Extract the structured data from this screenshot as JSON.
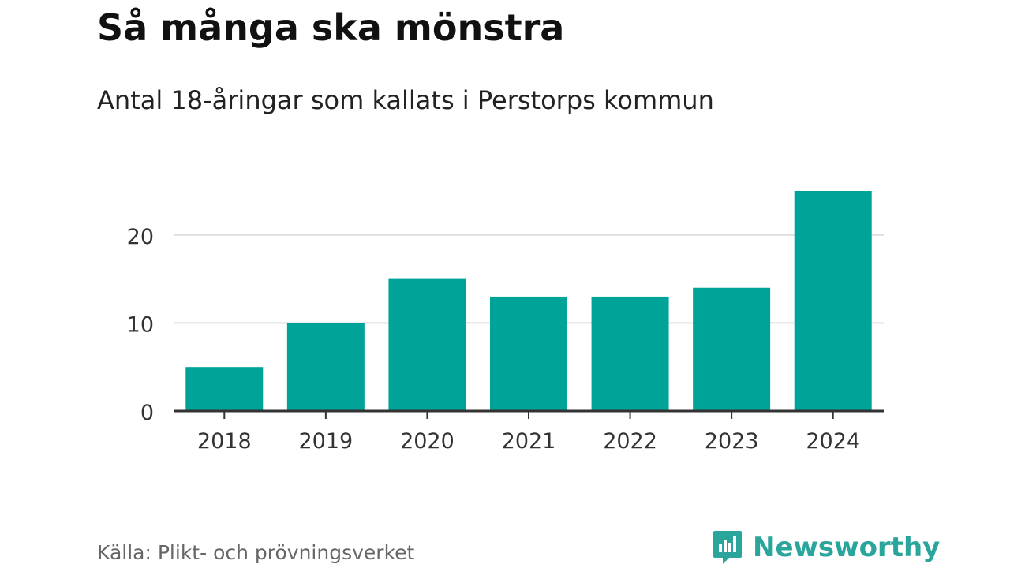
{
  "header": {
    "title": "Så många ska mönstra",
    "subtitle": "Antal 18-åringar som kallats i Perstorps kommun"
  },
  "footer": {
    "source": "Källa: Plikt- och prövningsverket",
    "brand": "Newsworthy",
    "brand_color": "#2aa59b"
  },
  "chart_data": {
    "type": "bar",
    "categories": [
      "2018",
      "2019",
      "2020",
      "2021",
      "2022",
      "2023",
      "2024"
    ],
    "values": [
      5,
      10,
      15,
      13,
      13,
      14,
      25
    ],
    "yticks": [
      0,
      10,
      20
    ],
    "ylim": [
      0,
      25
    ],
    "grid": true,
    "bar_color": "#00a397",
    "xlabel": "",
    "ylabel": ""
  }
}
